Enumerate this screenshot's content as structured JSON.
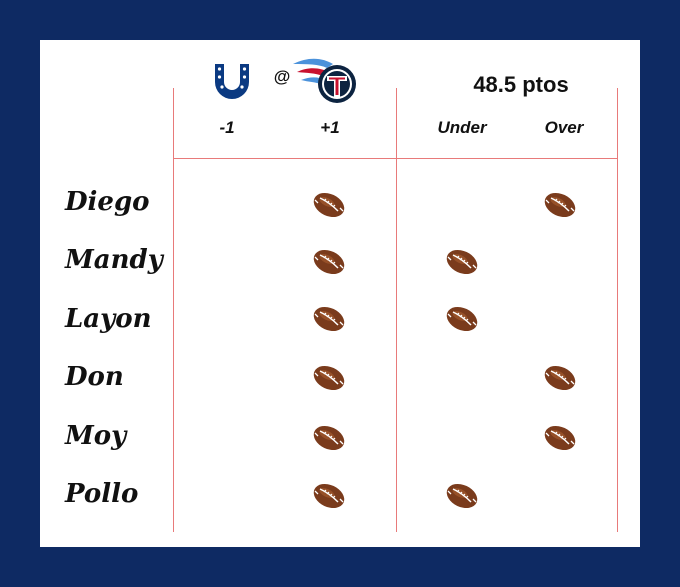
{
  "matchup": {
    "away_logo": "colts-horseshoe-icon",
    "separator": "@",
    "home_logo": "titans-logo-icon",
    "total_label": "48.5 ptos"
  },
  "columns": [
    "-1",
    "+1",
    "Under",
    "Over"
  ],
  "rows": [
    {
      "name": "Diego",
      "spread_pick": "+1",
      "total_pick": "Over"
    },
    {
      "name": "Mandy",
      "spread_pick": "+1",
      "total_pick": "Under"
    },
    {
      "name": "Layon",
      "spread_pick": "+1",
      "total_pick": "Under"
    },
    {
      "name": "Don",
      "spread_pick": "+1",
      "total_pick": "Over"
    },
    {
      "name": "Moy",
      "spread_pick": "+1",
      "total_pick": "Over"
    },
    {
      "name": "Pollo",
      "spread_pick": "+1",
      "total_pick": "Under"
    }
  ],
  "pick_icon": "football-icon",
  "colors": {
    "frame": "#0e2a63",
    "grid_lines": "#e87a7a",
    "colts_blue": "#0b3a82",
    "titans_navy": "#0c2340",
    "titans_red": "#c8102e",
    "titans_light_blue": "#4b92db",
    "football_brown": "#7a3b1c"
  }
}
